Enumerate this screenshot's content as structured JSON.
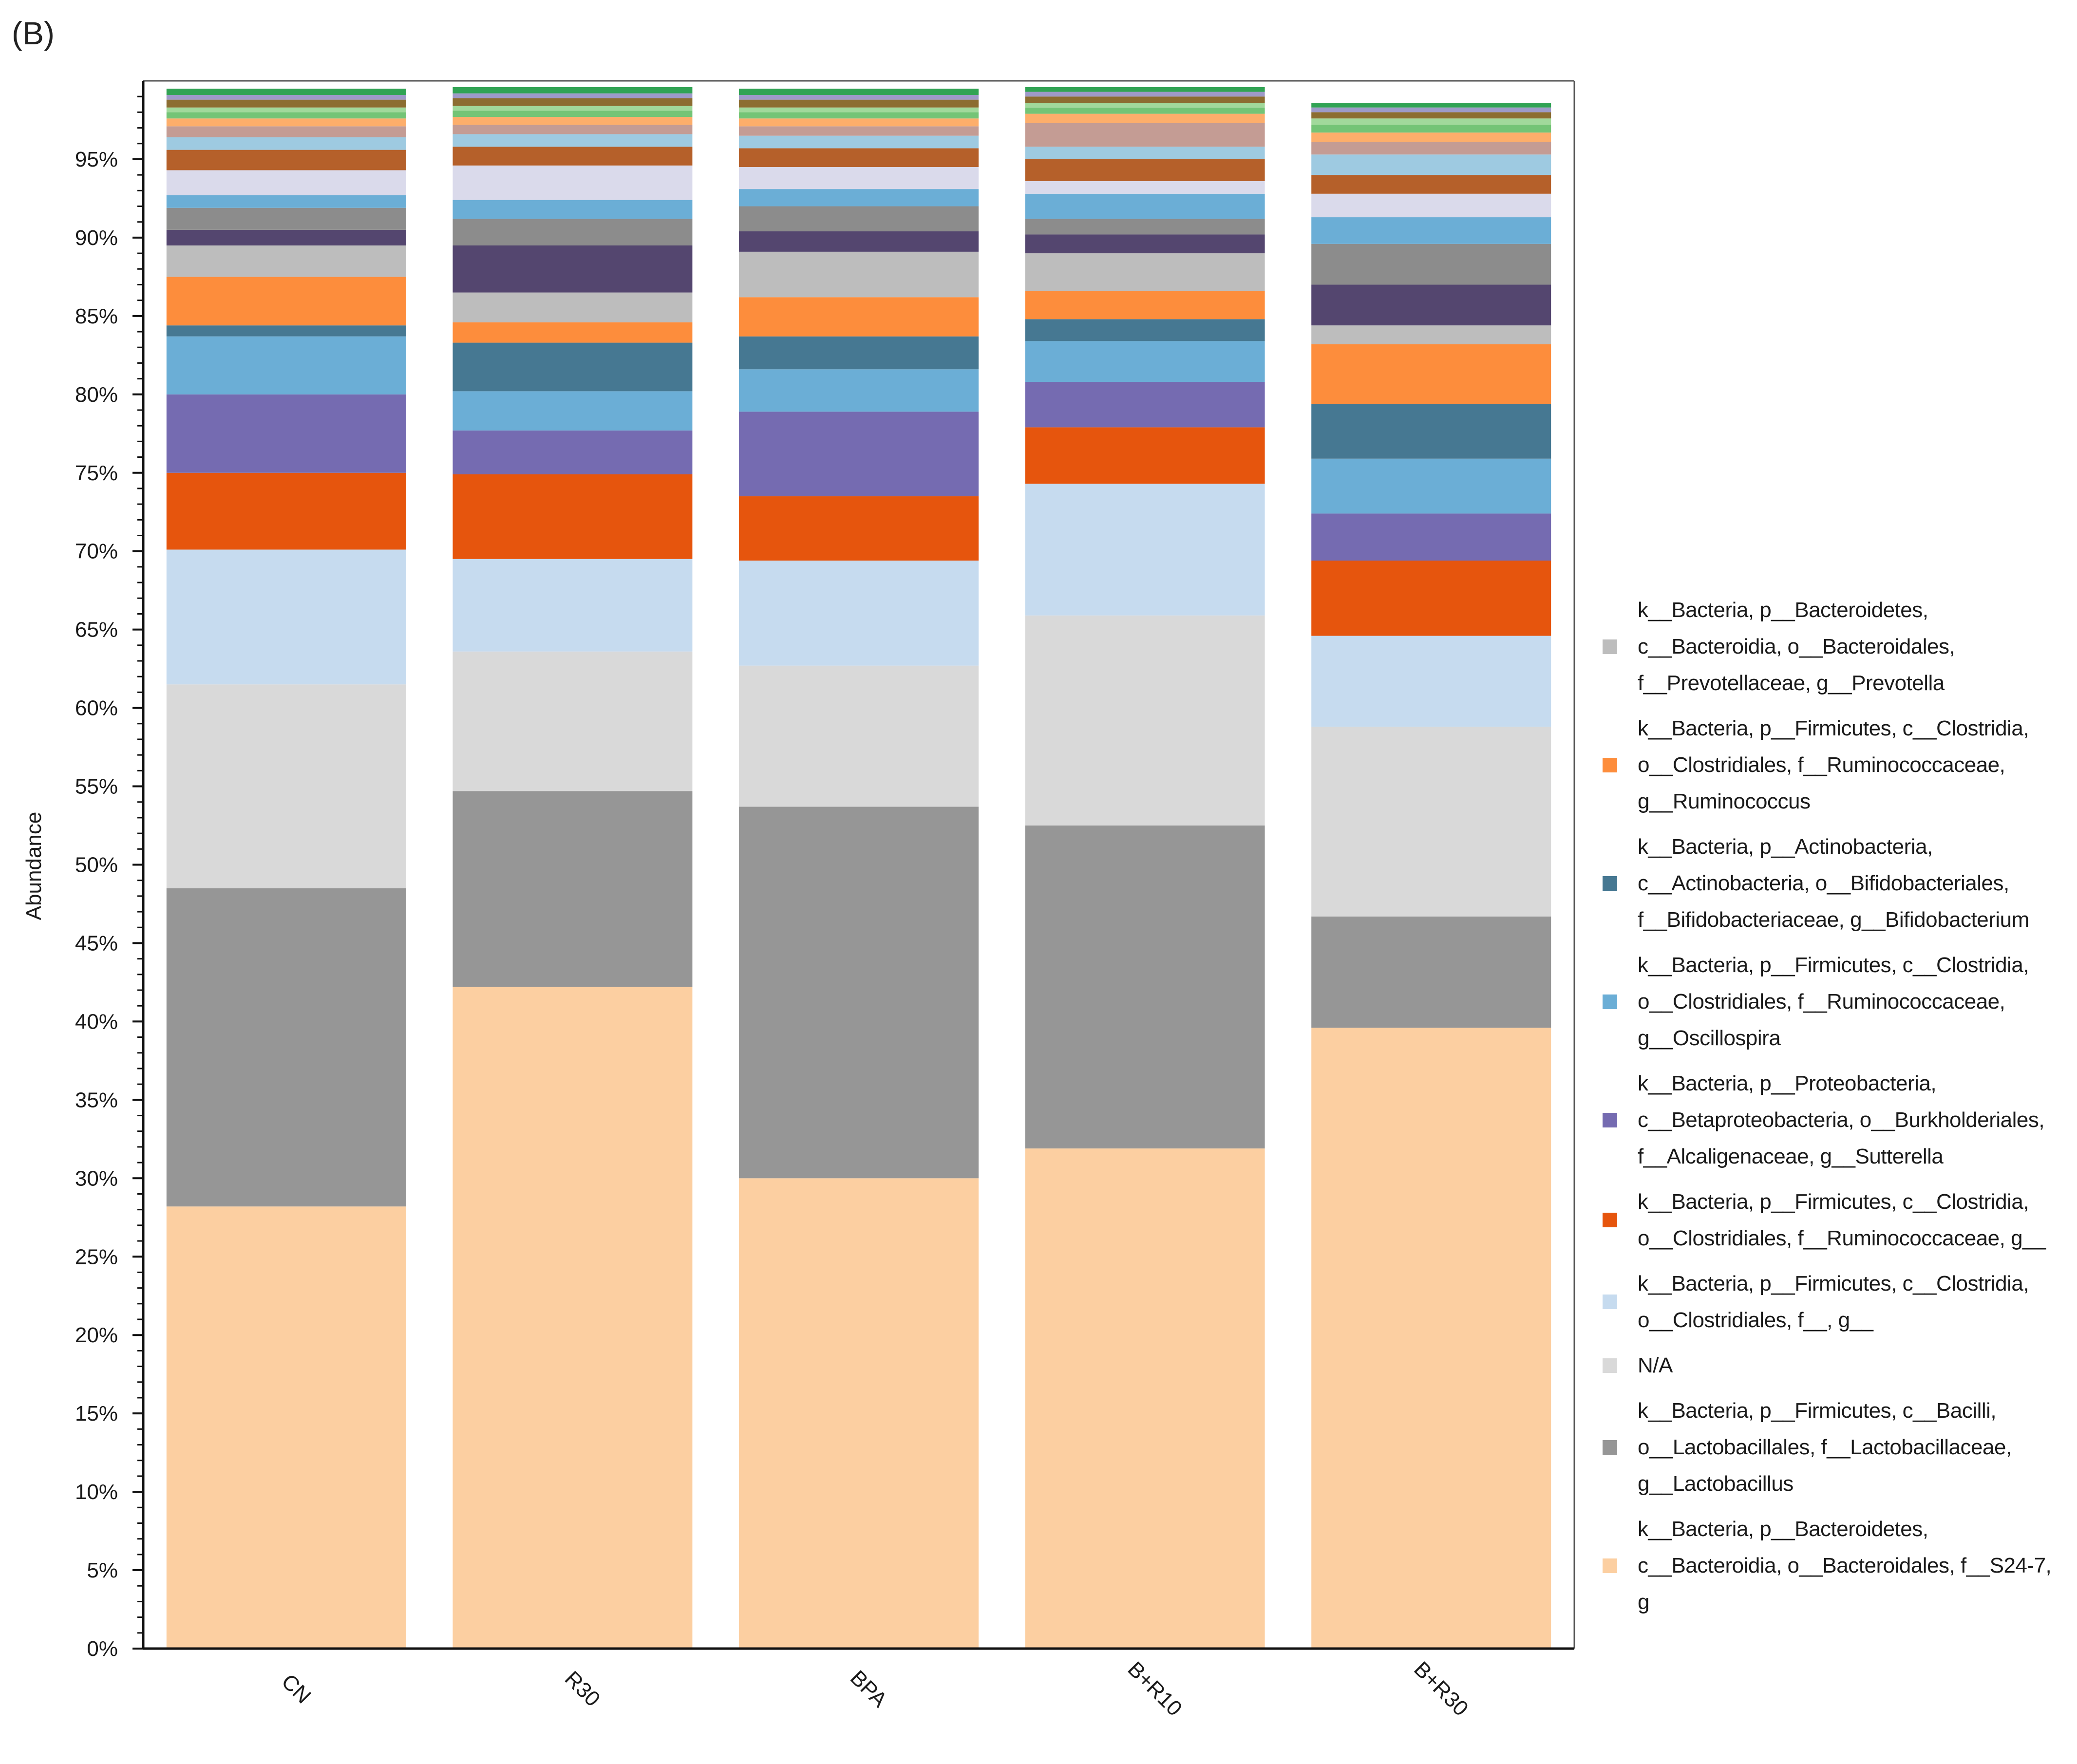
{
  "panel_label": "(B)",
  "chart_data": {
    "type": "bar",
    "stacked": true,
    "title": "",
    "xlabel": "",
    "ylabel": "Abundance",
    "ylim": [
      0,
      100
    ],
    "ytick_values": [
      0,
      5,
      10,
      15,
      20,
      25,
      30,
      35,
      40,
      45,
      50,
      55,
      60,
      65,
      70,
      75,
      80,
      85,
      90,
      95
    ],
    "ytick_labels": [
      "0%",
      "5%",
      "10%",
      "15%",
      "20%",
      "25%",
      "30%",
      "35%",
      "40%",
      "45%",
      "50%",
      "55%",
      "60%",
      "65%",
      "70%",
      "75%",
      "80%",
      "85%",
      "90%",
      "95%"
    ],
    "categories": [
      "CN",
      "R30",
      "BPA",
      "B+R10",
      "B+R30"
    ],
    "legend_position": "right",
    "series": [
      {
        "name": "k__Bacteria, p__Bacteroidetes, c__Bacteroidia, o__Bacteroidales, f__S24-7, g",
        "color": "#fccfa1",
        "legend_lines": [
          "k__Bacteria, p__Bacteroidetes,",
          "c__Bacteroidia, o__Bacteroidales, f__S24-7,",
          "g"
        ],
        "values": [
          28.2,
          42.2,
          30.0,
          31.9,
          39.6
        ]
      },
      {
        "name": "k__Bacteria, p__Firmicutes, c__Bacilli, o__Lactobacillales, f__Lactobacillaceae, g__Lactobacillus",
        "color": "#969696",
        "legend_lines": [
          "k__Bacteria, p__Firmicutes, c__Bacilli,",
          "o__Lactobacillales, f__Lactobacillaceae,",
          "g__Lactobacillus"
        ],
        "values": [
          20.3,
          12.5,
          23.7,
          20.6,
          7.1
        ]
      },
      {
        "name": "N/A",
        "color": "#d9d9d9",
        "legend_lines": [
          "N/A"
        ],
        "values": [
          13.0,
          8.9,
          9.0,
          13.4,
          12.1
        ]
      },
      {
        "name": "k__Bacteria, p__Firmicutes, c__Clostridia, o__Clostridiales, f__, g__",
        "color": "#c6dbef",
        "legend_lines": [
          "k__Bacteria, p__Firmicutes, c__Clostridia,",
          "o__Clostridiales, f__, g__"
        ],
        "values": [
          8.6,
          5.9,
          6.7,
          8.4,
          5.8
        ]
      },
      {
        "name": "k__Bacteria, p__Firmicutes, c__Clostridia, o__Clostridiales, f__Ruminococcaceae, g__",
        "color": "#e6550d",
        "legend_lines": [
          "k__Bacteria, p__Firmicutes, c__Clostridia,",
          "o__Clostridiales, f__Ruminococcaceae, g__"
        ],
        "values": [
          4.9,
          5.4,
          4.1,
          3.6,
          4.8
        ]
      },
      {
        "name": "k__Bacteria, p__Proteobacteria, c__Betaproteobacteria, o__Burkholderiales, f__Alcaligenaceae, g__Sutterella",
        "color": "#756bb1",
        "legend_lines": [
          "k__Bacteria, p__Proteobacteria,",
          "c__Betaproteobacteria, o__Burkholderiales,",
          "f__Alcaligenaceae, g__Sutterella"
        ],
        "values": [
          5.0,
          2.8,
          5.4,
          2.9,
          3.0
        ]
      },
      {
        "name": "k__Bacteria, p__Firmicutes, c__Clostridia, o__Clostridiales, f__Ruminococcaceae, g__Oscillospira",
        "color": "#6baed6",
        "legend_lines": [
          "k__Bacteria, p__Firmicutes, c__Clostridia,",
          "o__Clostridiales, f__Ruminococcaceae,",
          "g__Oscillospira"
        ],
        "values": [
          3.7,
          2.5,
          2.7,
          2.6,
          3.5
        ]
      },
      {
        "name": "k__Bacteria, p__Actinobacteria, c__Actinobacteria, o__Bifidobacteriales, f__Bifidobacteriaceae, g__Bifidobacterium",
        "color": "#467892",
        "legend_lines": [
          "k__Bacteria, p__Actinobacteria,",
          "c__Actinobacteria, o__Bifidobacteriales,",
          "f__Bifidobacteriaceae, g__Bifidobacterium"
        ],
        "values": [
          0.7,
          3.1,
          2.1,
          1.4,
          3.5
        ]
      },
      {
        "name": "k__Bacteria, p__Firmicutes, c__Clostridia, o__Clostridiales, f__Ruminococcaceae, g__Ruminococcus",
        "color": "#fd8d3c",
        "legend_lines": [
          "k__Bacteria, p__Firmicutes, c__Clostridia,",
          "o__Clostridiales, f__Ruminococcaceae,",
          "g__Ruminococcus"
        ],
        "values": [
          3.1,
          1.3,
          2.5,
          1.8,
          3.8
        ]
      },
      {
        "name": "k__Bacteria, p__Bacteroidetes, c__Bacteroidia, o__Bacteroidales, f__Prevotellaceae, g__Prevotella",
        "color": "#bdbdbd",
        "legend_lines": [
          "k__Bacteria, p__Bacteroidetes,",
          "c__Bacteroidia, o__Bacteroidales,",
          "f__Prevotellaceae, g__Prevotella"
        ],
        "values": [
          2.0,
          1.9,
          2.9,
          2.4,
          1.2
        ]
      }
    ],
    "other_segments": {
      "colors": [
        "#54466f",
        "#8c8c8c",
        "#6baed6",
        "#dadaeb",
        "#b5602a",
        "#9ecae1",
        "#c49c94",
        "#fdae6b",
        "#74c476",
        "#a1d99b",
        "#8c6d31",
        "#9e9ac8",
        "#31a354"
      ],
      "values": [
        [
          1.0,
          1.4,
          0.8,
          1.6,
          1.3,
          0.8,
          0.7,
          0.5,
          0.4,
          0.3,
          0.5,
          0.3,
          0.4
        ],
        [
          3.0,
          1.7,
          1.2,
          2.2,
          1.2,
          0.8,
          0.6,
          0.5,
          0.4,
          0.3,
          0.5,
          0.3,
          0.4
        ],
        [
          1.3,
          1.6,
          1.1,
          1.4,
          1.2,
          0.8,
          0.6,
          0.5,
          0.4,
          0.3,
          0.5,
          0.3,
          0.4
        ],
        [
          1.2,
          1.0,
          1.6,
          0.8,
          1.4,
          0.8,
          1.5,
          0.6,
          0.4,
          0.3,
          0.4,
          0.3,
          0.3
        ],
        [
          2.6,
          2.6,
          1.7,
          1.5,
          1.2,
          1.3,
          0.8,
          0.6,
          0.5,
          0.4,
          0.4,
          0.3,
          0.3
        ]
      ]
    }
  }
}
